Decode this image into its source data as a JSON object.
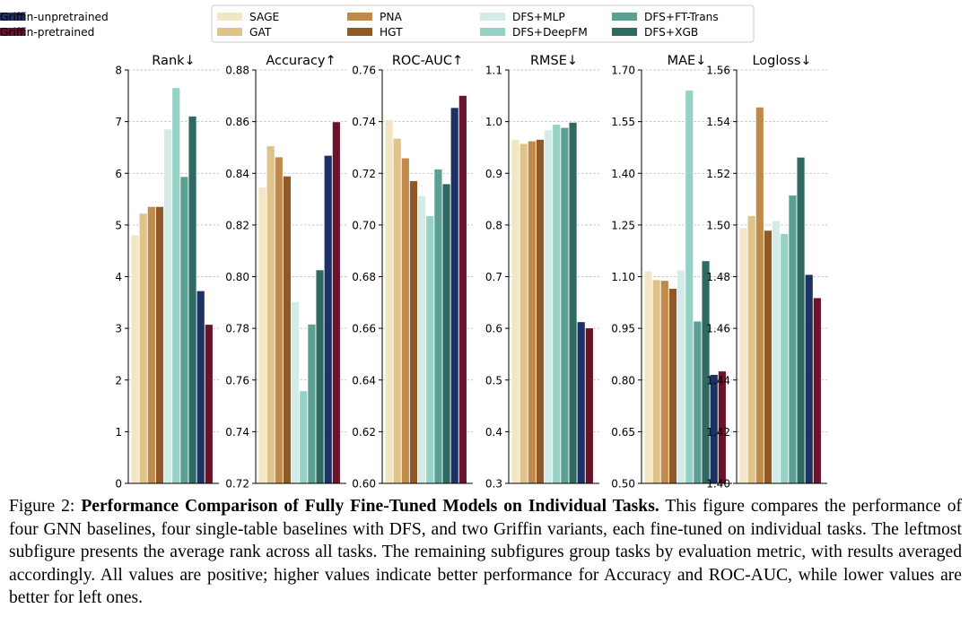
{
  "legend": {
    "items": [
      {
        "label": "SAGE",
        "color": "#f3e6c4"
      },
      {
        "label": "GAT",
        "color": "#dfc48a"
      },
      {
        "label": "PNA",
        "color": "#c08b4a"
      },
      {
        "label": "HGT",
        "color": "#8f5a27"
      },
      {
        "label": "DFS+MLP",
        "color": "#d3ece7"
      },
      {
        "label": "DFS+DeepFM",
        "color": "#96d1c6"
      },
      {
        "label": "DFS+FT-Trans",
        "color": "#5c9f93"
      },
      {
        "label": "DFS+XGB",
        "color": "#2e6a62"
      },
      {
        "label": "Griffin-unpretrained",
        "color": "#1c3264"
      },
      {
        "label": "Griffin-pretrained",
        "color": "#6a142c"
      }
    ]
  },
  "chart_data": [
    {
      "type": "bar",
      "title": "Rank↓",
      "ylim": [
        0,
        8
      ],
      "yticks": [
        "0",
        "1",
        "2",
        "3",
        "4",
        "5",
        "6",
        "7",
        "8"
      ],
      "tickvals": [
        0,
        1,
        2,
        3,
        4,
        5,
        6,
        7,
        8
      ],
      "values": [
        4.8,
        5.22,
        5.35,
        5.35,
        6.85,
        7.65,
        5.93,
        7.1,
        3.72,
        3.07
      ],
      "grid": true
    },
    {
      "type": "bar",
      "title": "Accuracy↑",
      "ylim": [
        0.72,
        0.88
      ],
      "yticks": [
        "0.72",
        "0.74",
        "0.76",
        "0.78",
        "0.80",
        "0.82",
        "0.84",
        "0.86",
        "0.88"
      ],
      "tickvals": [
        0.72,
        0.74,
        0.76,
        0.78,
        0.8,
        0.82,
        0.84,
        0.86,
        0.88
      ],
      "values": [
        0.8345,
        0.8505,
        0.8462,
        0.8388,
        0.7902,
        0.7557,
        0.7815,
        0.8025,
        0.8468,
        0.8598
      ],
      "grid": true
    },
    {
      "type": "bar",
      "title": "ROC-AUC↑",
      "ylim": [
        0.6,
        0.76
      ],
      "yticks": [
        "0.60",
        "0.62",
        "0.64",
        "0.66",
        "0.68",
        "0.70",
        "0.72",
        "0.74",
        "0.76"
      ],
      "tickvals": [
        0.6,
        0.62,
        0.64,
        0.66,
        0.68,
        0.7,
        0.72,
        0.74,
        0.76
      ],
      "values": [
        0.7407,
        0.7334,
        0.7258,
        0.717,
        0.7112,
        0.7034,
        0.7215,
        0.7158,
        0.7453,
        0.75
      ],
      "grid": true
    },
    {
      "type": "bar",
      "title": "RMSE↓",
      "ylim": [
        0.3,
        1.1
      ],
      "yticks": [
        "0.3",
        "0.4",
        "0.5",
        "0.6",
        "0.7",
        "0.8",
        "0.9",
        "1.0",
        "1.1"
      ],
      "tickvals": [
        0.3,
        0.4,
        0.5,
        0.6,
        0.7,
        0.8,
        0.9,
        1.0,
        1.1
      ],
      "values": [
        0.965,
        0.957,
        0.962,
        0.965,
        0.983,
        0.994,
        0.988,
        0.998,
        0.612,
        0.6
      ],
      "grid": true
    },
    {
      "type": "bar",
      "title": "MAE↓",
      "ylim": [
        0.5,
        1.7
      ],
      "yticks": [
        "0.50",
        "0.65",
        "0.80",
        "0.95",
        "1.10",
        "1.25",
        "1.40",
        "1.55",
        "1.70"
      ],
      "tickvals": [
        0.5,
        0.65,
        0.8,
        0.95,
        1.1,
        1.25,
        1.4,
        1.55,
        1.7
      ],
      "values": [
        1.115,
        1.09,
        1.088,
        1.065,
        1.118,
        1.64,
        0.97,
        1.145,
        0.815,
        0.825
      ],
      "grid": true
    },
    {
      "type": "bar",
      "title": "Logloss↓",
      "ylim": [
        1.4,
        1.56
      ],
      "yticks": [
        "1.40",
        "1.42",
        "1.44",
        "1.46",
        "1.48",
        "1.50",
        "1.52",
        "1.54",
        "1.56"
      ],
      "tickvals": [
        1.4,
        1.42,
        1.44,
        1.46,
        1.48,
        1.5,
        1.52,
        1.54,
        1.56
      ],
      "values": [
        1.4988,
        1.5035,
        1.5455,
        1.4978,
        1.5015,
        1.4965,
        1.5114,
        1.5261,
        1.4807,
        1.4717
      ],
      "grid": true
    }
  ],
  "caption": {
    "label": "Figure 2:",
    "title": "Performance Comparison of Fully Fine-Tuned Models on Individual Tasks.",
    "body": "This figure compares the performance of four GNN baselines, four single-table baselines with DFS, and two Griffin variants, each fine-tuned on individual tasks. The leftmost subfigure presents the average rank across all tasks. The remaining subfigures group tasks by evaluation metric, with results averaged accordingly. All values are positive; higher values indicate better performance for Accuracy and ROC-AUC, while lower values are better for left ones."
  }
}
